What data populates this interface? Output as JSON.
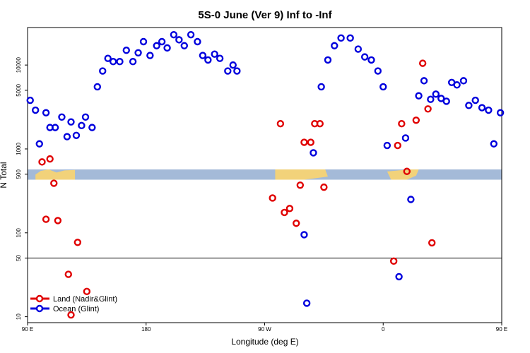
{
  "chart_data": {
    "type": "scatter",
    "title": "5S-0 June (Ver 9)   Inf to -Inf",
    "xlabel": "Longitude (deg E)",
    "ylabel": "N Total",
    "xlim": [
      90,
      450
    ],
    "ylim": [
      8.5,
      28000
    ],
    "y_scale": "log",
    "x_ticks": [
      {
        "value": 90,
        "label": "90 E"
      },
      {
        "value": 180,
        "label": "180"
      },
      {
        "value": 270,
        "label": "90 W"
      },
      {
        "value": 360,
        "label": "0"
      },
      {
        "value": 450,
        "label": "90 E"
      },
      {
        "value": 540,
        "label": "180"
      }
    ],
    "y_ticks": [
      {
        "value": 10,
        "label": "10"
      },
      {
        "value": 50,
        "label": "50"
      },
      {
        "value": 100,
        "label": "100"
      },
      {
        "value": 500,
        "label": "500"
      },
      {
        "value": 1000,
        "label": "1000"
      },
      {
        "value": 5000,
        "label": "5000"
      },
      {
        "value": 10000,
        "label": "10000"
      }
    ],
    "reference_line": 50,
    "land_band": {
      "ymin": 430,
      "ymax": 570,
      "ocean_color": "#A4BAD8",
      "land_color": "#F2D27A"
    },
    "legend_position": "bottom-left",
    "series": [
      {
        "name": "Land (Nadir&Glint)",
        "color": "#E00000",
        "points": [
          [
            101,
            700
          ],
          [
            104,
            145
          ],
          [
            107,
            760
          ],
          [
            110,
            390
          ],
          [
            113,
            140
          ],
          [
            121,
            32
          ],
          [
            123,
            10.5
          ],
          [
            128,
            77
          ],
          [
            135,
            20
          ],
          [
            276,
            260
          ],
          [
            282,
            2000
          ],
          [
            285,
            175
          ],
          [
            289,
            195
          ],
          [
            294,
            130
          ],
          [
            297,
            370
          ],
          [
            300,
            1200
          ],
          [
            305,
            1200
          ],
          [
            308,
            2000
          ],
          [
            312,
            2000
          ],
          [
            315,
            350
          ],
          [
            368,
            46
          ],
          [
            371,
            1100
          ],
          [
            374,
            2000
          ],
          [
            378,
            540
          ],
          [
            385,
            2200
          ],
          [
            390,
            10500
          ],
          [
            394,
            3000
          ],
          [
            397,
            76
          ],
          [
            458,
            700
          ],
          [
            462,
            145
          ],
          [
            467,
            760
          ],
          [
            470,
            390
          ],
          [
            473,
            140
          ],
          [
            481,
            32
          ],
          [
            483,
            10.5
          ],
          [
            488,
            77
          ],
          [
            495,
            20
          ]
        ]
      },
      {
        "name": "Ocean (Glint)",
        "color": "#0000DD",
        "points": [
          [
            92,
            3800
          ],
          [
            96,
            2900
          ],
          [
            99,
            1150
          ],
          [
            104,
            2700
          ],
          [
            107,
            1800
          ],
          [
            111,
            1800
          ],
          [
            116,
            2400
          ],
          [
            120,
            1400
          ],
          [
            123,
            2100
          ],
          [
            127,
            1450
          ],
          [
            131,
            1900
          ],
          [
            134,
            2400
          ],
          [
            139,
            1800
          ],
          [
            143,
            5500
          ],
          [
            147,
            8500
          ],
          [
            151,
            12000
          ],
          [
            155,
            11000
          ],
          [
            160,
            11000
          ],
          [
            165,
            15000
          ],
          [
            170,
            11000
          ],
          [
            174,
            14000
          ],
          [
            178,
            19000
          ],
          [
            183,
            13000
          ],
          [
            188,
            17000
          ],
          [
            192,
            19000
          ],
          [
            196,
            16000
          ],
          [
            201,
            23000
          ],
          [
            205,
            20000
          ],
          [
            209,
            17000
          ],
          [
            214,
            23000
          ],
          [
            219,
            19000
          ],
          [
            223,
            13000
          ],
          [
            227,
            11500
          ],
          [
            232,
            13500
          ],
          [
            236,
            12000
          ],
          [
            242,
            8500
          ],
          [
            246,
            10000
          ],
          [
            249,
            8500
          ],
          [
            300,
            95
          ],
          [
            302,
            14.5
          ],
          [
            307,
            900
          ],
          [
            313,
            5500
          ],
          [
            318,
            11500
          ],
          [
            323,
            17000
          ],
          [
            328,
            21000
          ],
          [
            335,
            21000
          ],
          [
            341,
            15500
          ],
          [
            346,
            12500
          ],
          [
            351,
            11500
          ],
          [
            356,
            8500
          ],
          [
            360,
            5500
          ],
          [
            363,
            1100
          ],
          [
            372,
            30
          ],
          [
            377,
            1350
          ],
          [
            381,
            250
          ],
          [
            387,
            4300
          ],
          [
            391,
            6500
          ],
          [
            396,
            3900
          ],
          [
            400,
            4500
          ],
          [
            404,
            4000
          ],
          [
            408,
            3700
          ],
          [
            412,
            6200
          ],
          [
            416,
            5800
          ],
          [
            421,
            6500
          ],
          [
            425,
            3300
          ],
          [
            430,
            3800
          ],
          [
            435,
            3100
          ],
          [
            440,
            2900
          ],
          [
            444,
            1150
          ],
          [
            449,
            2700
          ]
        ]
      }
    ]
  }
}
